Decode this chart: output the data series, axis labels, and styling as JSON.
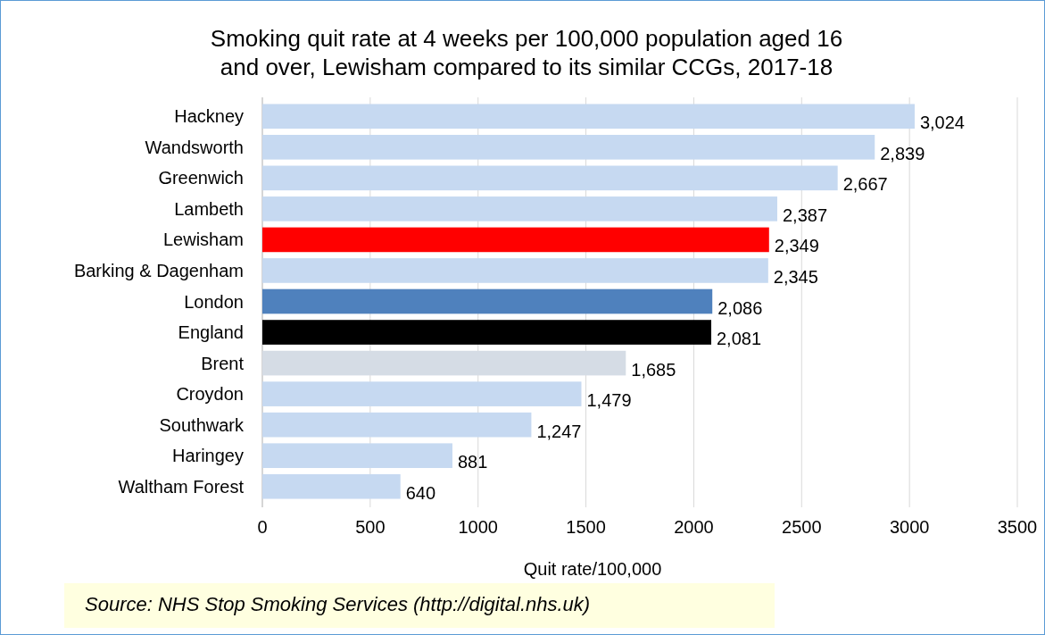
{
  "chart_data": {
    "type": "bar",
    "orientation": "horizontal",
    "title": "Smoking quit rate at 4 weeks per 100,000 population aged 16 and over, Lewisham compared to its similar CCGs, 2017-18",
    "xlabel": "Quit rate/100,000",
    "categories": [
      "Hackney",
      "Wandsworth",
      "Greenwich",
      "Lambeth",
      "Lewisham",
      "Barking & Dagenham",
      "London",
      "England",
      "Brent",
      "Croydon",
      "Southwark",
      "Haringey",
      "Waltham Forest"
    ],
    "values": [
      3024,
      2839,
      2667,
      2387,
      2349,
      2345,
      2086,
      2081,
      1685,
      1479,
      1247,
      881,
      640
    ],
    "colors": [
      "#c6d9f1",
      "#c6d9f1",
      "#c6d9f1",
      "#c6d9f1",
      "#ff0000",
      "#c6d9f1",
      "#4f81bd",
      "#000000",
      "#d5dce5",
      "#c6d9f1",
      "#c6d9f1",
      "#c6d9f1",
      "#c6d9f1"
    ],
    "value_labels": [
      "3,024",
      "2,839",
      "2,667",
      "2,387",
      "2,349",
      "2,345",
      "2,086",
      "2,081",
      "1,685",
      "1,479",
      "1,247",
      "881",
      "640"
    ],
    "xlim": [
      0,
      3500
    ],
    "xticks": [
      0,
      500,
      1000,
      1500,
      2000,
      2500,
      3000,
      3500
    ],
    "grid": "x",
    "annotations": [
      "Source: NHS Stop Smoking Services (http://digital.nhs.uk)"
    ]
  }
}
